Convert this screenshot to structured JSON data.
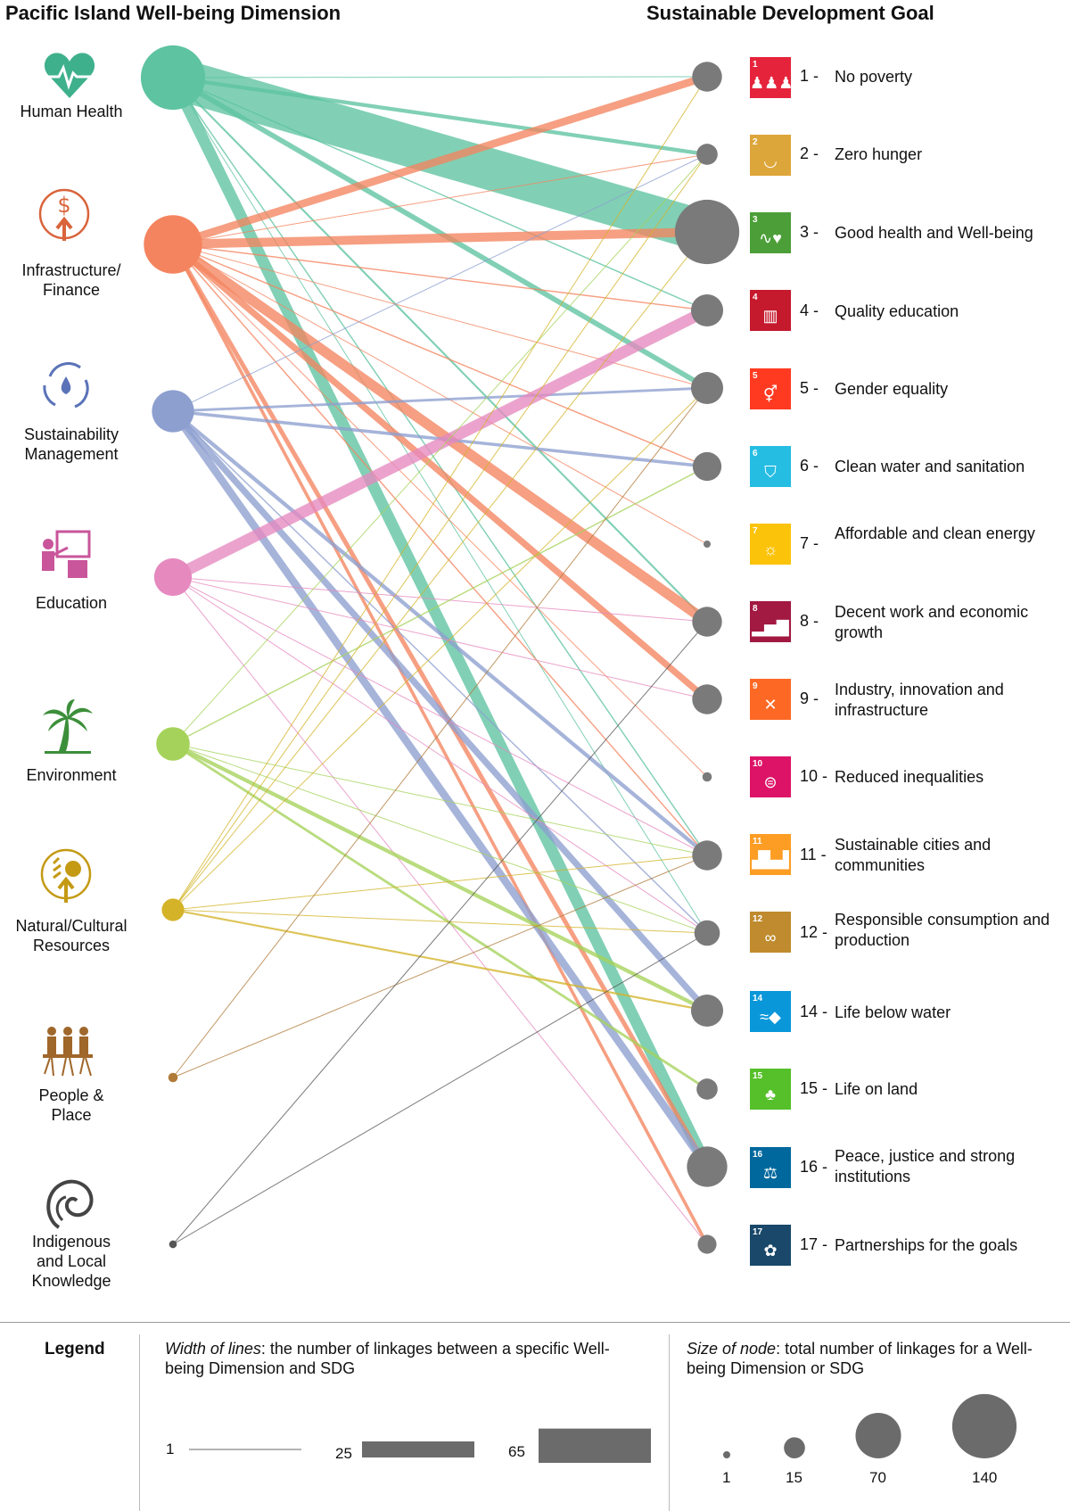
{
  "headers": {
    "left": "Pacific Island Well-being Dimension",
    "right": "Sustainable Development Goal"
  },
  "dimensions": [
    {
      "id": "hh",
      "label": "Human Health",
      "icon": "heart-pulse-icon",
      "color": "#5dc3a0",
      "total": 140
    },
    {
      "id": "if",
      "label": "Infrastructure/\nFinance",
      "icon": "dollar-growth-icon",
      "color": "#f4845f",
      "total": 115
    },
    {
      "id": "sm",
      "label": "Sustainability\nManagement",
      "icon": "recycle-water-icon",
      "color": "#8d9fcf",
      "total": 60
    },
    {
      "id": "ed",
      "label": "Education",
      "icon": "teacher-board-icon",
      "color": "#e589bf",
      "total": 48
    },
    {
      "id": "en",
      "label": "Environment",
      "icon": "palm-tree-icon",
      "color": "#a5d25a",
      "total": 38
    },
    {
      "id": "nc",
      "label": "Natural/Cultural\nResources",
      "icon": "grain-sun-icon",
      "color": "#d4b328",
      "total": 17
    },
    {
      "id": "pp",
      "label": "People &\nPlace",
      "icon": "people-roots-icon",
      "color": "#b07a38",
      "total": 3
    },
    {
      "id": "ik",
      "label": "Indigenous\nand Local\nKnowledge",
      "icon": "koru-spiral-icon",
      "color": "#555555",
      "total": 2
    }
  ],
  "sdgs": [
    {
      "num": "1 -",
      "tile_num": "1",
      "label": "No poverty",
      "color": "#e5243b",
      "icon": "family-icon",
      "total": 30
    },
    {
      "num": "2 -",
      "tile_num": "2",
      "label": "Zero hunger",
      "color": "#dda63a",
      "icon": "bowl-icon",
      "total": 15
    },
    {
      "num": "3 -",
      "tile_num": "3",
      "label": "Good health and Well-being",
      "color": "#4c9f38",
      "icon": "heartbeat-icon",
      "total": 140
    },
    {
      "num": "4 -",
      "tile_num": "4",
      "label": "Quality education",
      "color": "#c5192d",
      "icon": "book-icon",
      "total": 35
    },
    {
      "num": "5 -",
      "tile_num": "5",
      "label": "Gender equality",
      "color": "#ff3a21",
      "icon": "gender-icon",
      "total": 35
    },
    {
      "num": "6 -",
      "tile_num": "6",
      "label": "Clean water and sanitation",
      "color": "#26bde2",
      "icon": "water-glass-icon",
      "total": 28
    },
    {
      "num": "7 -",
      "tile_num": "7",
      "label": "Affordable and clean energy",
      "color": "#fcc30b",
      "icon": "sun-icon",
      "total": 1
    },
    {
      "num": "8 -",
      "tile_num": "8",
      "label": "Decent work and economic growth",
      "color": "#a21942",
      "icon": "growth-chart-icon",
      "total": 30
    },
    {
      "num": "9 -",
      "tile_num": "9",
      "label": "Industry, innovation and infrastructure",
      "color": "#fd6925",
      "icon": "tools-icon",
      "total": 30
    },
    {
      "num": "10 -",
      "tile_num": "10",
      "label": "Reduced inequalities",
      "color": "#dd1367",
      "icon": "equals-icon",
      "total": 3
    },
    {
      "num": "11 -",
      "tile_num": "11",
      "label": "Sustainable cities and communities",
      "color": "#fd9d24",
      "icon": "city-icon",
      "total": 30
    },
    {
      "num": "12 -",
      "tile_num": "12",
      "label": "Responsible consumption and production",
      "color": "#bf8b2e",
      "icon": "infinity-icon",
      "total": 22
    },
    {
      "num": "14 -",
      "tile_num": "14",
      "label": "Life below water",
      "color": "#0a97d9",
      "icon": "fish-icon",
      "total": 35
    },
    {
      "num": "15 -",
      "tile_num": "15",
      "label": "Life on land",
      "color": "#56c02b",
      "icon": "tree-icon",
      "total": 15
    },
    {
      "num": "16 -",
      "tile_num": "16",
      "label": "Peace, justice and strong institutions",
      "color": "#00689d",
      "icon": "dove-gavel-icon",
      "total": 55
    },
    {
      "num": "17 -",
      "tile_num": "17",
      "label": "Partnerships for the goals",
      "color": "#19486a",
      "icon": "rings-icon",
      "total": 12
    }
  ],
  "links": [
    {
      "from": "hh",
      "to": 0,
      "w": 1
    },
    {
      "from": "hh",
      "to": 1,
      "w": 6
    },
    {
      "from": "hh",
      "to": 2,
      "w": 65
    },
    {
      "from": "hh",
      "to": 3,
      "w": 2
    },
    {
      "from": "hh",
      "to": 4,
      "w": 8
    },
    {
      "from": "hh",
      "to": 7,
      "w": 3
    },
    {
      "from": "hh",
      "to": 10,
      "w": 2
    },
    {
      "from": "hh",
      "to": 11,
      "w": 1
    },
    {
      "from": "hh",
      "to": 14,
      "w": 18
    },
    {
      "from": "if",
      "to": 0,
      "w": 12
    },
    {
      "from": "if",
      "to": 1,
      "w": 1
    },
    {
      "from": "if",
      "to": 2,
      "w": 14
    },
    {
      "from": "if",
      "to": 3,
      "w": 2
    },
    {
      "from": "if",
      "to": 4,
      "w": 1
    },
    {
      "from": "if",
      "to": 5,
      "w": 2
    },
    {
      "from": "if",
      "to": 6,
      "w": 1
    },
    {
      "from": "if",
      "to": 7,
      "w": 16
    },
    {
      "from": "if",
      "to": 8,
      "w": 10
    },
    {
      "from": "if",
      "to": 9,
      "w": 1
    },
    {
      "from": "if",
      "to": 10,
      "w": 2
    },
    {
      "from": "if",
      "to": 14,
      "w": 7
    },
    {
      "from": "if",
      "to": 15,
      "w": 5
    },
    {
      "from": "sm",
      "to": 1,
      "w": 1
    },
    {
      "from": "sm",
      "to": 4,
      "w": 4
    },
    {
      "from": "sm",
      "to": 5,
      "w": 5
    },
    {
      "from": "sm",
      "to": 10,
      "w": 6
    },
    {
      "from": "sm",
      "to": 11,
      "w": 2
    },
    {
      "from": "sm",
      "to": 12,
      "w": 10
    },
    {
      "from": "sm",
      "to": 14,
      "w": 12
    },
    {
      "from": "ed",
      "to": 3,
      "w": 18
    },
    {
      "from": "ed",
      "to": 7,
      "w": 1
    },
    {
      "from": "ed",
      "to": 8,
      "w": 1
    },
    {
      "from": "ed",
      "to": 10,
      "w": 1
    },
    {
      "from": "ed",
      "to": 11,
      "w": 1
    },
    {
      "from": "ed",
      "to": 15,
      "w": 1
    },
    {
      "from": "en",
      "to": 1,
      "w": 1
    },
    {
      "from": "en",
      "to": 5,
      "w": 2
    },
    {
      "from": "en",
      "to": 10,
      "w": 1
    },
    {
      "from": "en",
      "to": 11,
      "w": 1
    },
    {
      "from": "en",
      "to": 12,
      "w": 6
    },
    {
      "from": "en",
      "to": 13,
      "w": 4
    },
    {
      "from": "nc",
      "to": 0,
      "w": 1
    },
    {
      "from": "nc",
      "to": 1,
      "w": 1
    },
    {
      "from": "nc",
      "to": 2,
      "w": 1
    },
    {
      "from": "nc",
      "to": 4,
      "w": 1
    },
    {
      "from": "nc",
      "to": 10,
      "w": 1
    },
    {
      "from": "nc",
      "to": 11,
      "w": 1
    },
    {
      "from": "nc",
      "to": 12,
      "w": 3
    },
    {
      "from": "pp",
      "to": 4,
      "w": 1
    },
    {
      "from": "pp",
      "to": 10,
      "w": 1
    },
    {
      "from": "ik",
      "to": 7,
      "w": 1
    },
    {
      "from": "ik",
      "to": 11,
      "w": 1
    }
  ],
  "legend": {
    "title": "Legend",
    "width_title": "Width of lines",
    "width_text": ": the number of linkages between a specific Well-being Dimension and SDG",
    "size_title": "Size of node",
    "size_text": ": total number of linkages for a Well-being Dimension or SDG",
    "width_samples": [
      {
        "label": "1",
        "value": 1
      },
      {
        "label": "25",
        "value": 25
      },
      {
        "label": "65",
        "value": 65
      }
    ],
    "size_samples": [
      {
        "label": "1",
        "value": 1
      },
      {
        "label": "15",
        "value": 15
      },
      {
        "label": "70",
        "value": 70
      },
      {
        "label": "140",
        "value": 140
      }
    ]
  }
}
